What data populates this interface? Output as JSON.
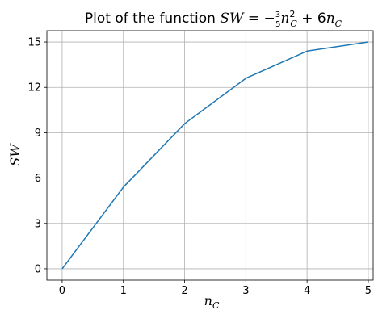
{
  "chart_data": {
    "type": "line",
    "title": {
      "prefix": "Plot of the function ",
      "math": "SW = -3/5 n_C^2 + 6n_C",
      "lhs": "SW",
      "eq": " = −",
      "frac_num": "3",
      "frac_den": "5",
      "var": "n",
      "var_sub": "C",
      "var_sup": "2",
      "plus": " + 6",
      "var2": "n",
      "var2_sub": "C"
    },
    "xlabel": {
      "main": "n",
      "sub": "C"
    },
    "ylabel": "SW",
    "x": [
      0,
      1,
      2,
      3,
      4,
      5
    ],
    "series": [
      {
        "values": [
          0,
          5.4,
          9.6,
          12.6,
          14.4,
          15
        ],
        "color": "#1f77b4"
      }
    ],
    "xticks": [
      "0",
      "1",
      "2",
      "3",
      "4",
      "5"
    ],
    "yticks": [
      "0",
      "3",
      "6",
      "9",
      "12",
      "15"
    ],
    "xlim": [
      -0.25,
      5.08
    ],
    "ylim": [
      -0.75,
      15.75
    ],
    "grid": true
  }
}
